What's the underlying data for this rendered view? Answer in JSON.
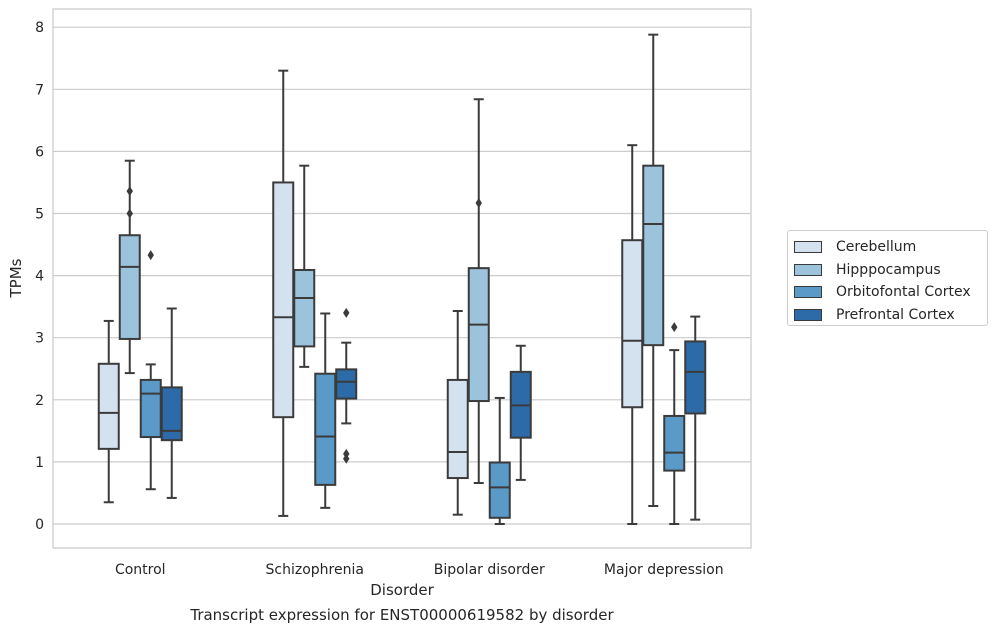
{
  "caption": "Transcript expression for ENST00000619582 by disorder",
  "chart_data": {
    "type": "box",
    "title": "",
    "xlabel": "Disorder",
    "ylabel": "TPMs",
    "ylim": [
      -0.38,
      8.3
    ],
    "yticks": [
      0,
      1,
      2,
      3,
      4,
      5,
      6,
      7,
      8
    ],
    "grid": "horizontal",
    "legend_position": "right",
    "categories": [
      "Control",
      "Schizophrenia",
      "Bipolar disorder",
      "Major depression"
    ],
    "series": [
      {
        "name": "Cerebellum",
        "color": "#d4e2f0",
        "boxes": [
          {
            "whislo": 0.35,
            "q1": 1.21,
            "med": 1.79,
            "q3": 2.58,
            "whishi": 3.27,
            "fliers": []
          },
          {
            "whislo": 0.13,
            "q1": 1.72,
            "med": 3.33,
            "q3": 5.5,
            "whishi": 7.3,
            "fliers": []
          },
          {
            "whislo": 0.15,
            "q1": 0.74,
            "med": 1.16,
            "q3": 2.32,
            "whishi": 3.43,
            "fliers": []
          },
          {
            "whislo": 0.0,
            "q1": 1.88,
            "med": 2.95,
            "q3": 4.57,
            "whishi": 6.1,
            "fliers": []
          }
        ]
      },
      {
        "name": "Hipppocampus",
        "color": "#9cc3dc",
        "boxes": [
          {
            "whislo": 2.43,
            "q1": 2.98,
            "med": 4.14,
            "q3": 4.65,
            "whishi": 5.85,
            "fliers": [
              5.36,
              5.0
            ]
          },
          {
            "whislo": 2.53,
            "q1": 2.86,
            "med": 3.64,
            "q3": 4.09,
            "whishi": 5.77,
            "fliers": []
          },
          {
            "whislo": 0.66,
            "q1": 1.98,
            "med": 3.21,
            "q3": 4.12,
            "whishi": 6.84,
            "fliers": [
              5.17
            ]
          },
          {
            "whislo": 0.29,
            "q1": 2.88,
            "med": 4.83,
            "q3": 5.77,
            "whishi": 7.88,
            "fliers": []
          }
        ]
      },
      {
        "name": "Orbitofontal Cortex",
        "color": "#5a9ac8",
        "boxes": [
          {
            "whislo": 0.56,
            "q1": 1.4,
            "med": 2.1,
            "q3": 2.32,
            "whishi": 2.57,
            "fliers": [
              4.33
            ]
          },
          {
            "whislo": 0.26,
            "q1": 0.63,
            "med": 1.41,
            "q3": 2.42,
            "whishi": 3.39,
            "fliers": []
          },
          {
            "whislo": 0.0,
            "q1": 0.1,
            "med": 0.59,
            "q3": 0.99,
            "whishi": 2.03,
            "fliers": []
          },
          {
            "whislo": 0.0,
            "q1": 0.86,
            "med": 1.15,
            "q3": 1.74,
            "whishi": 2.8,
            "fliers": [
              3.17
            ]
          }
        ]
      },
      {
        "name": "Prefrontal Cortex",
        "color": "#2c6ba8",
        "boxes": [
          {
            "whislo": 0.42,
            "q1": 1.35,
            "med": 1.5,
            "q3": 2.2,
            "whishi": 3.47,
            "fliers": []
          },
          {
            "whislo": 1.62,
            "q1": 2.02,
            "med": 2.29,
            "q3": 2.49,
            "whishi": 2.92,
            "fliers": [
              3.4,
              1.13,
              1.05
            ]
          },
          {
            "whislo": 0.71,
            "q1": 1.39,
            "med": 1.91,
            "q3": 2.45,
            "whishi": 2.87,
            "fliers": []
          },
          {
            "whislo": 0.07,
            "q1": 1.78,
            "med": 2.45,
            "q3": 2.94,
            "whishi": 3.34,
            "fliers": []
          }
        ]
      }
    ]
  }
}
